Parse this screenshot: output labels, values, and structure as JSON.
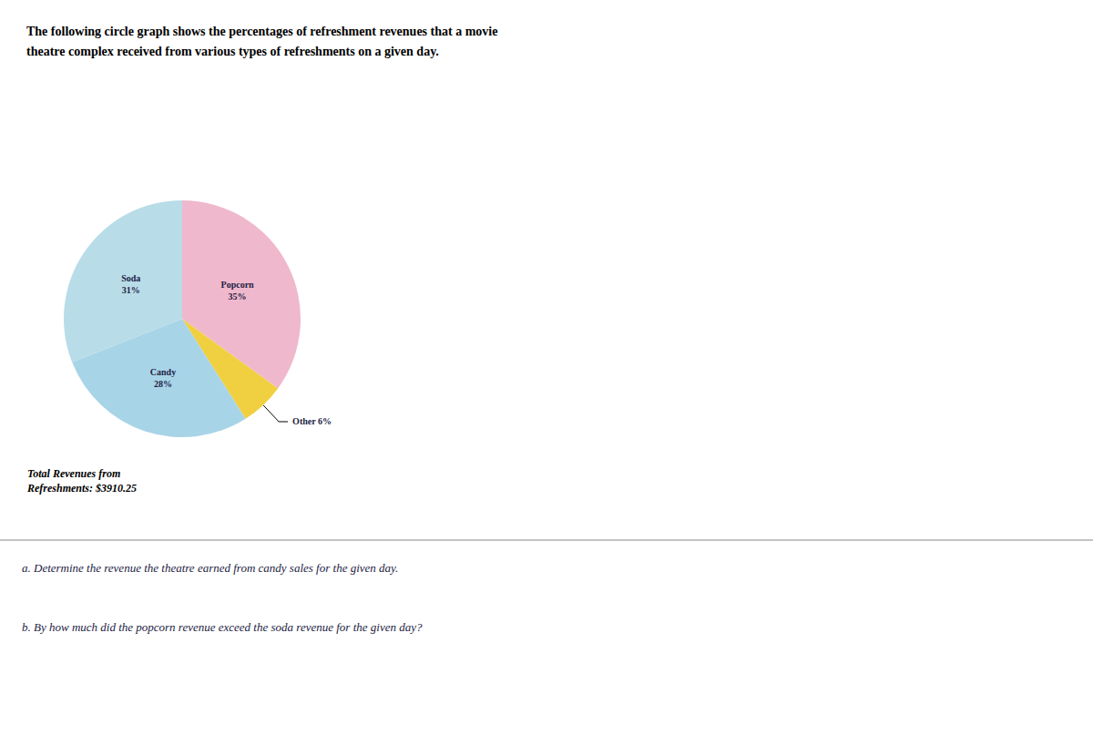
{
  "chart_data": {
    "type": "pie",
    "title": "The following circle graph shows the percentages of refreshment revenues that a movie\ntheatre complex received from various types of refreshments on a given day.",
    "categories": [
      "Popcorn",
      "Other",
      "Candy",
      "Soda"
    ],
    "values": [
      35,
      6,
      28,
      31
    ],
    "value_labels": [
      "Popcorn\n35%",
      "Other 6%",
      "Candy\n28%",
      "Soda\n31%"
    ],
    "colors": [
      "#f0b8cc",
      "#f0d040",
      "#a8d4e8",
      "#b8dce8"
    ],
    "data_labels": true,
    "annotations": [
      "Total Revenues from\nRefreshments: $3910.25",
      "a. Determine the revenue the theatre earned from candy sales for the given day.",
      "b. By how much did the popcorn revenue exceed the soda revenue for the given day?"
    ]
  }
}
